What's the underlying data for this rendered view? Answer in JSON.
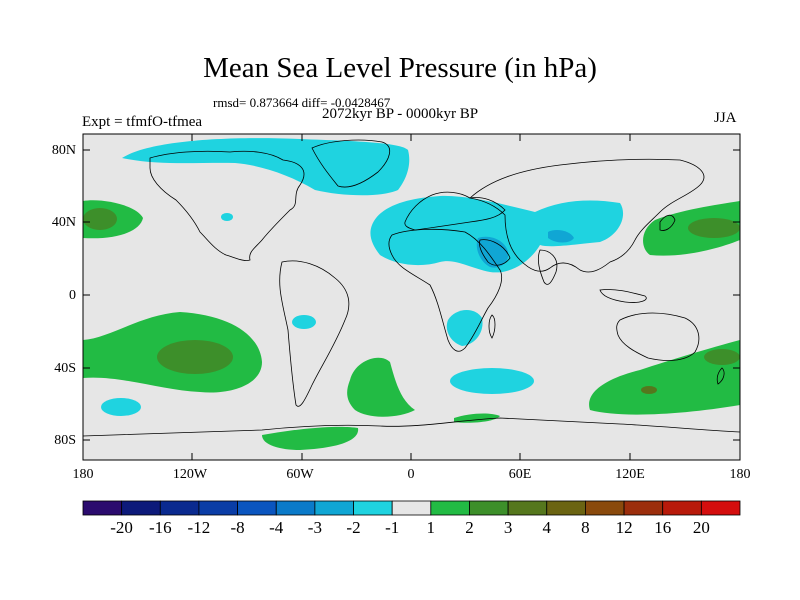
{
  "title": "Mean Sea Level Pressure (in hPa)",
  "stats_line": "rmsd= 0.873664 diff= -0.0428467",
  "period": "2072kyr BP - 0000kyr BP",
  "experiment": "Expt = tfmfO-tfmea",
  "season": "JJA",
  "lat_labels": [
    "80N",
    "40N",
    "0",
    "40S",
    "80S"
  ],
  "lon_labels": [
    "180",
    "120W",
    "60W",
    "0",
    "60E",
    "120E",
    "180"
  ],
  "colorbar": {
    "labels": [
      "-20",
      "-16",
      "-12",
      "-8",
      "-4",
      "-3",
      "-2",
      "-1",
      "1",
      "2",
      "3",
      "4",
      "8",
      "12",
      "16",
      "20"
    ],
    "colors": [
      "#2b0b6e",
      "#0d1a7a",
      "#0a2a8f",
      "#0a3da6",
      "#0a55bf",
      "#0a7ac9",
      "#10a6d4",
      "#1fd3e0",
      "#e6e6e6",
      "#22bb44",
      "#3d8f2a",
      "#55771d",
      "#6b6412",
      "#8a4a0c",
      "#9c2e0c",
      "#b81a0a",
      "#d40e0e"
    ]
  },
  "colors": {
    "land_bg": "#e6e6e6",
    "cyan_weak": "#1fd3e0",
    "cyan_mid": "#10a6d4",
    "green_weak": "#22bb44",
    "green_mid": "#3d8f2a",
    "green_strong": "#55771d",
    "brown": "#8a4a0c"
  }
}
